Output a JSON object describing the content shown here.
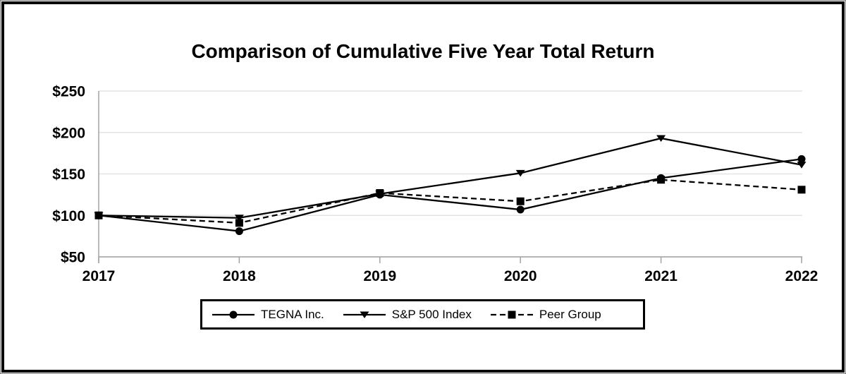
{
  "chart_data": {
    "type": "line",
    "title": "Comparison of Cumulative Five Year Total Return",
    "categories": [
      "2017",
      "2018",
      "2019",
      "2020",
      "2021",
      "2022"
    ],
    "series": [
      {
        "name": "TEGNA Inc.",
        "marker": "circle",
        "line_style": "solid",
        "color": "#000000",
        "values": [
          100,
          81,
          125,
          107,
          145,
          168
        ]
      },
      {
        "name": "S&P 500 Index",
        "marker": "triangle-down",
        "line_style": "solid",
        "color": "#000000",
        "values": [
          100,
          97,
          126,
          151,
          193,
          161
        ]
      },
      {
        "name": "Peer Group",
        "marker": "square",
        "line_style": "dashed",
        "color": "#000000",
        "values": [
          100,
          91,
          127,
          117,
          143,
          131
        ]
      }
    ],
    "y_ticks": [
      {
        "label": "$250",
        "value": 250
      },
      {
        "label": "$200",
        "value": 200
      },
      {
        "label": "$150",
        "value": 150
      },
      {
        "label": "$100",
        "value": 100
      },
      {
        "label": "$50",
        "value": 50
      }
    ],
    "ylim": [
      50,
      250
    ],
    "xlabel": "",
    "ylabel": "",
    "grid": "horizontal",
    "legend_position": "bottom",
    "grid_color": "#e3e3e3",
    "axis_color": "#a3a3a3"
  }
}
